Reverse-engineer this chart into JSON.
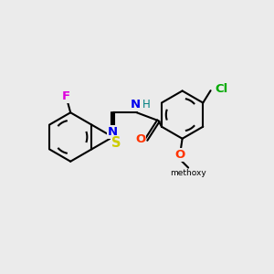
{
  "bg_color": "#ebebeb",
  "bond_color": "#000000",
  "bond_width": 1.5,
  "atom_colors": {
    "F": "#dd00dd",
    "N": "#0000ee",
    "H": "#008080",
    "O": "#ff3300",
    "S": "#cccc00",
    "Cl": "#00aa00",
    "C": "#000000"
  },
  "font_size": 9.5,
  "figsize": [
    3.0,
    3.0
  ],
  "dpi": 100
}
